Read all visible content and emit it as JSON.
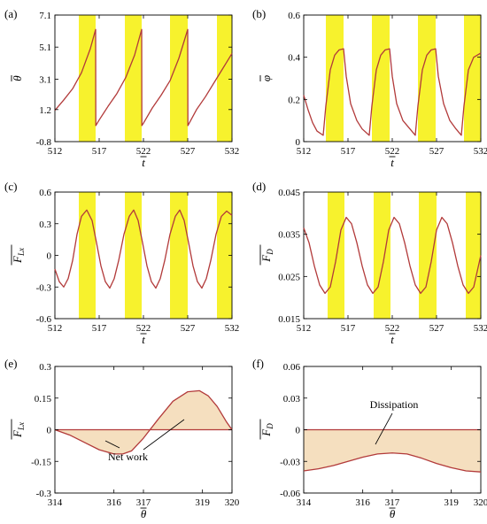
{
  "figure": {
    "panels": [
      {
        "label": "(a)",
        "ylabel": "θ̄",
        "xlabel": "t̄"
      },
      {
        "label": "(b)",
        "ylabel": "φ̄",
        "xlabel": "t̄"
      },
      {
        "label": "(c)",
        "ylabel": "F̄Lx",
        "xlabel": "t̄"
      },
      {
        "label": "(d)",
        "ylabel": "F̄D",
        "xlabel": "t̄"
      },
      {
        "label": "(e)",
        "ylabel": "F̄Lx",
        "xlabel": "θ̄",
        "annotation": "Net work"
      },
      {
        "label": "(f)",
        "ylabel": "F̄D",
        "xlabel": "θ̄",
        "annotation": "Dissipation"
      }
    ]
  },
  "colors": {
    "curve": "#b23a3a",
    "highlight_band": "#f7f22d",
    "fill_area": "#f5dfbf",
    "axes": "#000000"
  },
  "chart_data": [
    {
      "type": "line",
      "panel": "(a)",
      "ylabel": "θ̄",
      "xlabel": "t̄",
      "xlim": [
        512,
        532
      ],
      "ylim": [
        -0.8,
        7.1
      ],
      "xticks": [
        "512",
        "517",
        "522",
        "527",
        "532"
      ],
      "yticks": [
        "-0.8",
        "1.2",
        "3.1",
        "5.1",
        "7.1"
      ],
      "bands": [
        [
          514.7,
          516.6
        ],
        [
          519.9,
          521.8
        ],
        [
          525.0,
          527.0
        ],
        [
          530.3,
          532.0
        ]
      ],
      "series": [
        {
          "x": [
            512.0,
            513.0,
            514.0,
            515.0,
            516.0,
            516.6,
            516.62,
            517.0,
            518.0,
            519.0,
            520.0,
            521.0,
            521.8,
            521.82,
            522.0,
            523.0,
            524.0,
            525.0,
            526.0,
            527.0,
            527.02,
            528.0,
            529.0,
            530.0,
            531.0,
            532.0
          ],
          "y": [
            1.15,
            1.8,
            2.5,
            3.5,
            5.0,
            6.2,
            0.2,
            0.55,
            1.4,
            2.2,
            3.2,
            4.6,
            6.2,
            0.2,
            0.35,
            1.3,
            2.1,
            3.0,
            4.4,
            6.2,
            0.2,
            1.2,
            2.0,
            2.9,
            3.8,
            4.7
          ]
        }
      ]
    },
    {
      "type": "line",
      "panel": "(b)",
      "ylabel": "φ̄",
      "xlabel": "t̄",
      "xlim": [
        512,
        532
      ],
      "ylim": [
        0,
        0.6
      ],
      "xticks": [
        "512",
        "517",
        "522",
        "527",
        "532"
      ],
      "yticks": [
        "0",
        "0.2",
        "0.4",
        "0.6"
      ],
      "bands": [
        [
          514.5,
          516.5
        ],
        [
          519.7,
          521.7
        ],
        [
          524.9,
          526.9
        ],
        [
          530.1,
          532.0
        ]
      ],
      "series": [
        {
          "x": [
            512.0,
            512.5,
            513.0,
            513.5,
            514.2,
            514.5,
            515.0,
            515.5,
            516.0,
            516.5,
            516.8,
            517.3,
            518.0,
            518.6,
            519.4,
            519.7,
            520.2,
            520.7,
            521.2,
            521.7,
            522.0,
            522.5,
            523.2,
            524.0,
            524.6,
            524.9,
            525.4,
            525.9,
            526.4,
            526.9,
            527.2,
            527.8,
            528.5,
            529.2,
            529.8,
            530.1,
            530.6,
            531.2,
            532.0
          ],
          "y": [
            0.22,
            0.15,
            0.09,
            0.05,
            0.03,
            0.17,
            0.34,
            0.41,
            0.435,
            0.44,
            0.31,
            0.18,
            0.1,
            0.06,
            0.03,
            0.17,
            0.34,
            0.41,
            0.435,
            0.44,
            0.31,
            0.18,
            0.1,
            0.06,
            0.03,
            0.17,
            0.34,
            0.41,
            0.435,
            0.44,
            0.31,
            0.18,
            0.1,
            0.06,
            0.03,
            0.17,
            0.34,
            0.4,
            0.42
          ]
        }
      ]
    },
    {
      "type": "line",
      "panel": "(c)",
      "ylabel": "F̄Lx",
      "xlabel": "t̄",
      "xlim": [
        512,
        532
      ],
      "ylim": [
        -0.6,
        0.6
      ],
      "xticks": [
        "512",
        "517",
        "522",
        "527",
        "532"
      ],
      "yticks": [
        "-0.6",
        "-0.3",
        "0",
        "0.3",
        "0.6"
      ],
      "bands": [
        [
          514.7,
          516.6
        ],
        [
          519.9,
          521.8
        ],
        [
          525.0,
          527.0
        ],
        [
          530.3,
          532.0
        ]
      ],
      "series": [
        {
          "x": [
            512.0,
            512.5,
            513.0,
            513.5,
            514.0,
            514.5,
            515.0,
            515.6,
            516.2,
            516.7,
            517.2,
            517.7,
            518.2,
            518.7,
            519.2,
            519.8,
            520.4,
            520.9,
            521.4,
            521.9,
            522.4,
            522.9,
            523.4,
            523.9,
            524.4,
            525.0,
            525.6,
            526.1,
            526.6,
            527.1,
            527.6,
            528.1,
            528.6,
            529.1,
            529.6,
            530.2,
            530.8,
            531.4,
            532.0
          ],
          "y": [
            -0.13,
            -0.25,
            -0.3,
            -0.22,
            -0.05,
            0.2,
            0.37,
            0.43,
            0.33,
            0.12,
            -0.1,
            -0.25,
            -0.31,
            -0.22,
            -0.05,
            0.2,
            0.37,
            0.43,
            0.33,
            0.12,
            -0.1,
            -0.25,
            -0.31,
            -0.22,
            -0.05,
            0.2,
            0.37,
            0.43,
            0.33,
            0.12,
            -0.1,
            -0.25,
            -0.31,
            -0.22,
            -0.05,
            0.2,
            0.37,
            0.42,
            0.38
          ]
        }
      ]
    },
    {
      "type": "line",
      "panel": "(d)",
      "ylabel": "F̄D",
      "xlabel": "t̄",
      "xlim": [
        512,
        532
      ],
      "ylim": [
        0.015,
        0.045
      ],
      "xticks": [
        "512",
        "517",
        "522",
        "527",
        "532"
      ],
      "yticks": [
        "0.015",
        "0.025",
        "0.035",
        "0.045"
      ],
      "bands": [
        [
          514.7,
          516.6
        ],
        [
          519.9,
          521.8
        ],
        [
          525.0,
          527.0
        ],
        [
          530.3,
          532.0
        ]
      ],
      "series": [
        {
          "x": [
            512.0,
            512.6,
            513.2,
            513.8,
            514.4,
            515.0,
            515.6,
            516.2,
            516.8,
            517.4,
            518.0,
            518.6,
            519.2,
            519.8,
            520.4,
            521.0,
            521.6,
            522.2,
            522.8,
            523.4,
            524.0,
            524.6,
            525.2,
            525.8,
            526.4,
            527.0,
            527.6,
            528.2,
            528.8,
            529.4,
            530.0,
            530.6,
            531.2,
            532.0
          ],
          "y": [
            0.0365,
            0.033,
            0.0275,
            0.023,
            0.021,
            0.0225,
            0.0285,
            0.036,
            0.039,
            0.0375,
            0.033,
            0.0275,
            0.023,
            0.021,
            0.0225,
            0.0285,
            0.036,
            0.039,
            0.0375,
            0.033,
            0.0275,
            0.023,
            0.021,
            0.0225,
            0.0285,
            0.036,
            0.039,
            0.0375,
            0.033,
            0.0275,
            0.023,
            0.021,
            0.0225,
            0.03
          ]
        }
      ]
    },
    {
      "type": "area",
      "panel": "(e)",
      "ylabel": "F̄Lx",
      "xlabel": "θ̄",
      "xlim": [
        314,
        320
      ],
      "ylim": [
        -0.3,
        0.3
      ],
      "xticks": [
        "314",
        "316",
        "317",
        "319",
        "320"
      ],
      "yticks": [
        "-0.3",
        "-0.15",
        "0",
        "0.15",
        "0.3"
      ],
      "annotation": "Net work",
      "series": [
        {
          "x": [
            314.0,
            314.5,
            315.0,
            315.5,
            316.0,
            316.3,
            316.6,
            317.0,
            317.5,
            318.0,
            318.5,
            318.9,
            319.2,
            319.5,
            319.8,
            320.0
          ],
          "y": [
            0.0,
            -0.025,
            -0.06,
            -0.095,
            -0.115,
            -0.115,
            -0.1,
            -0.04,
            0.05,
            0.135,
            0.18,
            0.185,
            0.16,
            0.11,
            0.04,
            0.0
          ]
        }
      ]
    },
    {
      "type": "area",
      "panel": "(f)",
      "ylabel": "F̄D",
      "xlabel": "θ̄",
      "xlim": [
        314,
        320
      ],
      "ylim": [
        -0.06,
        0.06
      ],
      "xticks": [
        "314",
        "316",
        "317",
        "319",
        "320"
      ],
      "yticks": [
        "-0.06",
        "-0.03",
        "0",
        "0.03",
        "0.06"
      ],
      "annotation": "Dissipation",
      "series": [
        {
          "x": [
            314.0,
            314.5,
            315.0,
            315.5,
            316.0,
            316.5,
            317.0,
            317.5,
            318.0,
            318.5,
            319.0,
            319.5,
            320.0
          ],
          "y": [
            -0.039,
            -0.037,
            -0.034,
            -0.03,
            -0.026,
            -0.023,
            -0.022,
            -0.023,
            -0.027,
            -0.032,
            -0.036,
            -0.039,
            -0.04
          ]
        }
      ]
    }
  ]
}
